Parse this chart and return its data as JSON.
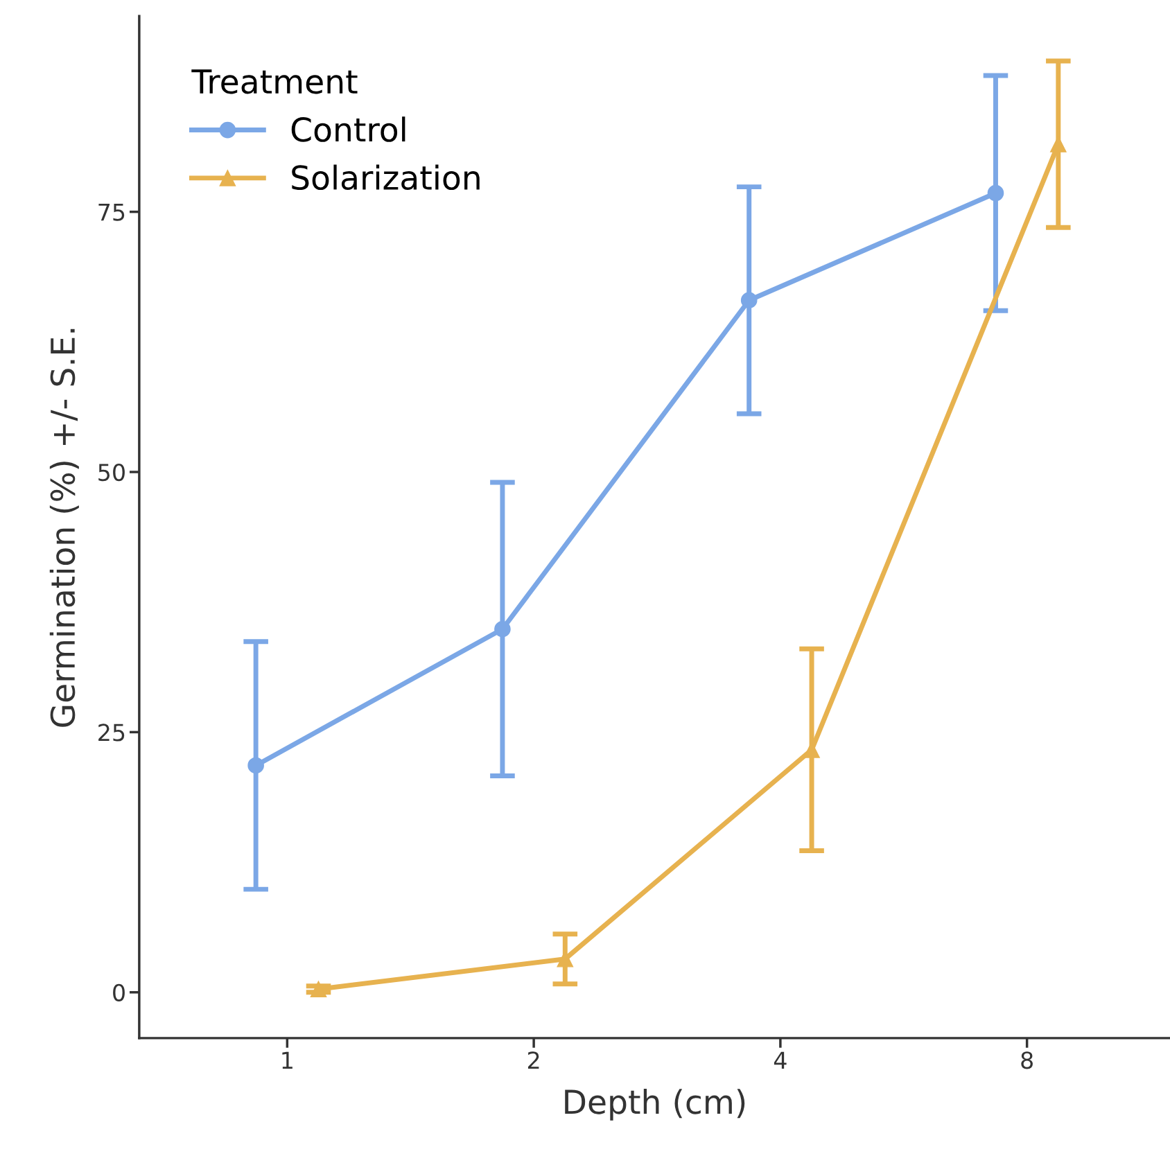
{
  "chart_data": {
    "type": "line",
    "xlabel": "Depth (cm)",
    "ylabel": "Germination (%) +/- S.E.",
    "legend_title": "Treatment",
    "categories": [
      "1",
      "2",
      "4",
      "8"
    ],
    "series": [
      {
        "name": "Control",
        "color": "#7ba7e6",
        "marker": "circle",
        "values": [
          21.8,
          34.9,
          66.5,
          76.8
        ],
        "errors": [
          11.9,
          14.1,
          10.9,
          11.3
        ]
      },
      {
        "name": "Solarization",
        "color": "#e7b24f",
        "marker": "triangle",
        "values": [
          0.3,
          3.2,
          23.3,
          81.5
        ],
        "errors": [
          0.3,
          2.4,
          9.7,
          8.0
        ]
      }
    ],
    "ylim": [
      -4.4,
      93.8
    ],
    "yticks": [
      0,
      25,
      50,
      75
    ],
    "grid": false,
    "legend": "top left",
    "line_style": "solid"
  }
}
